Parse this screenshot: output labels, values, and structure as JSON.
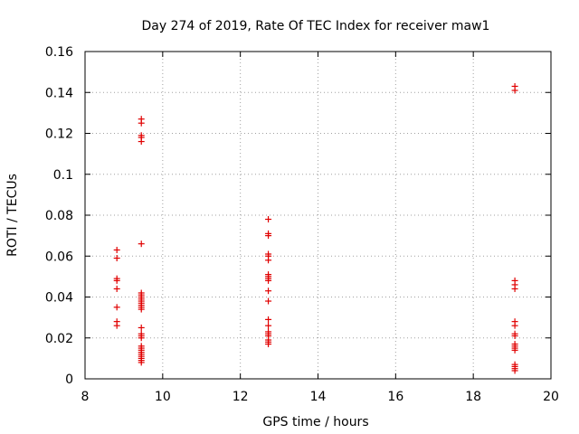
{
  "chart_data": {
    "type": "scatter",
    "title": "Day 274 of 2019, Rate Of TEC Index for receiver maw1",
    "xlabel": "GPS time / hours",
    "ylabel": "ROTI / TECUs",
    "xlim": [
      8,
      20
    ],
    "ylim": [
      0,
      0.16
    ],
    "xticks": [
      8,
      10,
      12,
      14,
      16,
      18,
      20
    ],
    "xtick_labels": [
      "8",
      "10",
      "12",
      "14",
      "16",
      "18",
      "20"
    ],
    "yticks": [
      0,
      0.02,
      0.04,
      0.06,
      0.08,
      0.1,
      0.12,
      0.14,
      0.16
    ],
    "ytick_labels": [
      "0",
      "0.02",
      "0.04",
      "0.06",
      "0.08",
      "0.1",
      "0.12",
      "0.14",
      "0.16"
    ],
    "grid": true,
    "marker": "+",
    "color": "#e00000",
    "series": [
      {
        "points": [
          [
            8.82,
            0.063
          ],
          [
            8.82,
            0.059
          ],
          [
            8.82,
            0.049
          ],
          [
            8.82,
            0.048
          ],
          [
            8.82,
            0.044
          ],
          [
            8.82,
            0.035
          ],
          [
            8.82,
            0.028
          ],
          [
            8.82,
            0.026
          ],
          [
            9.45,
            0.127
          ],
          [
            9.45,
            0.125
          ],
          [
            9.45,
            0.119
          ],
          [
            9.45,
            0.118
          ],
          [
            9.45,
            0.116
          ],
          [
            9.45,
            0.066
          ],
          [
            9.45,
            0.042
          ],
          [
            9.45,
            0.041
          ],
          [
            9.45,
            0.04
          ],
          [
            9.45,
            0.039
          ],
          [
            9.45,
            0.038
          ],
          [
            9.45,
            0.037
          ],
          [
            9.45,
            0.036
          ],
          [
            9.45,
            0.035
          ],
          [
            9.45,
            0.034
          ],
          [
            9.45,
            0.025
          ],
          [
            9.45,
            0.022
          ],
          [
            9.45,
            0.021
          ],
          [
            9.45,
            0.02
          ],
          [
            9.45,
            0.016
          ],
          [
            9.45,
            0.015
          ],
          [
            9.45,
            0.014
          ],
          [
            9.45,
            0.013
          ],
          [
            9.45,
            0.012
          ],
          [
            9.45,
            0.011
          ],
          [
            9.45,
            0.01
          ],
          [
            9.45,
            0.009
          ],
          [
            9.45,
            0.008
          ],
          [
            12.72,
            0.078
          ],
          [
            12.72,
            0.071
          ],
          [
            12.72,
            0.07
          ],
          [
            12.72,
            0.061
          ],
          [
            12.72,
            0.06
          ],
          [
            12.72,
            0.058
          ],
          [
            12.72,
            0.051
          ],
          [
            12.72,
            0.05
          ],
          [
            12.72,
            0.049
          ],
          [
            12.72,
            0.048
          ],
          [
            12.72,
            0.043
          ],
          [
            12.72,
            0.038
          ],
          [
            12.72,
            0.029
          ],
          [
            12.72,
            0.026
          ],
          [
            12.72,
            0.023
          ],
          [
            12.72,
            0.022
          ],
          [
            12.72,
            0.021
          ],
          [
            12.72,
            0.019
          ],
          [
            12.72,
            0.018
          ],
          [
            12.72,
            0.017
          ],
          [
            19.07,
            0.143
          ],
          [
            19.07,
            0.141
          ],
          [
            19.07,
            0.048
          ],
          [
            19.07,
            0.046
          ],
          [
            19.07,
            0.044
          ],
          [
            19.07,
            0.028
          ],
          [
            19.07,
            0.026
          ],
          [
            19.07,
            0.022
          ],
          [
            19.07,
            0.021
          ],
          [
            19.07,
            0.017
          ],
          [
            19.07,
            0.016
          ],
          [
            19.07,
            0.015
          ],
          [
            19.07,
            0.014
          ],
          [
            19.07,
            0.007
          ],
          [
            19.07,
            0.006
          ],
          [
            19.07,
            0.005
          ],
          [
            19.07,
            0.004
          ]
        ]
      }
    ]
  }
}
